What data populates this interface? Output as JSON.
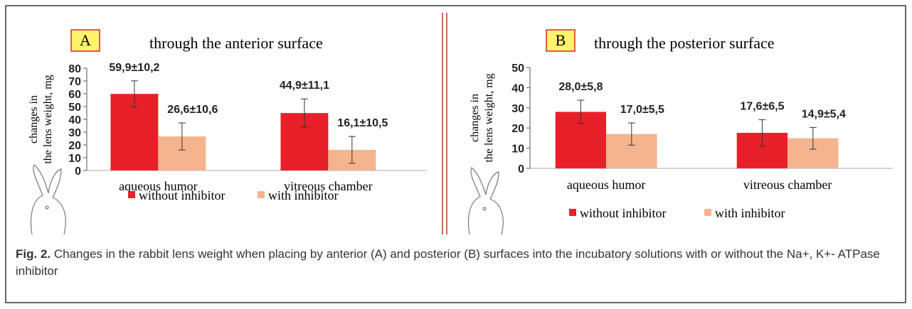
{
  "chart_data": [
    {
      "type": "bar",
      "panel": "A",
      "title": "through the anterior surface",
      "ylabel": [
        "changes in",
        "the lens weight, mg"
      ],
      "categories": [
        "aqueous humor",
        "vitreous chamber"
      ],
      "series": [
        {
          "name": "without inhibitor",
          "color": "#e8202a",
          "values": [
            59.9,
            44.9
          ],
          "errors": [
            10.2,
            11.1
          ],
          "value_labels": [
            "59,9±10,2",
            "44,9±11,1"
          ]
        },
        {
          "name": "with inhibitor",
          "color": "#f6b48e",
          "values": [
            26.6,
            16.1
          ],
          "errors": [
            10.6,
            10.5
          ],
          "value_labels": [
            "26,6±10,6",
            "16,1±10,5"
          ]
        }
      ],
      "ylim": [
        0,
        80
      ],
      "yticks": [
        0,
        10,
        20,
        30,
        40,
        50,
        60,
        70,
        80
      ]
    },
    {
      "type": "bar",
      "panel": "B",
      "title": "through the posterior surface",
      "ylabel": [
        "changes in",
        "the lens weight, mg"
      ],
      "categories": [
        "aqueous humor",
        "vitreous chamber"
      ],
      "series": [
        {
          "name": "without inhibitor",
          "color": "#e8202a",
          "values": [
            28.0,
            17.6
          ],
          "errors": [
            5.8,
            6.5
          ],
          "value_labels": [
            "28,0±5,8",
            "17,6±6,5"
          ]
        },
        {
          "name": "with inhibitor",
          "color": "#f6b48e",
          "values": [
            17.0,
            14.9
          ],
          "errors": [
            5.5,
            5.4
          ],
          "value_labels": [
            "17,0±5,5",
            "14,9±5,4"
          ]
        }
      ],
      "ylim": [
        0,
        50
      ],
      "yticks": [
        0,
        10,
        20,
        30,
        40,
        50
      ]
    }
  ],
  "caption": {
    "label": "Fig. 2.",
    "text": "Changes in the rabbit lens weight when placing by anterior (A) and posterior (B) surfaces into the incubatory solutions with or without the Na+, K+- ATPase inhibitor"
  }
}
